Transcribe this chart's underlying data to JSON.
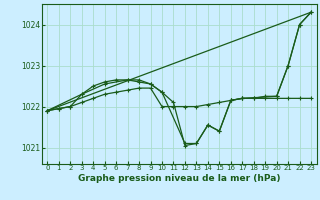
{
  "title": "Graphe pression niveau de la mer (hPa)",
  "bg_color": "#cceeff",
  "grid_color": "#aaddcc",
  "line_color": "#1a5c1a",
  "xlim": [
    -0.5,
    23.5
  ],
  "ylim": [
    1020.6,
    1024.5
  ],
  "yticks": [
    1021,
    1022,
    1023,
    1024
  ],
  "xticks": [
    0,
    1,
    2,
    3,
    4,
    5,
    6,
    7,
    8,
    9,
    10,
    11,
    12,
    13,
    14,
    15,
    16,
    17,
    18,
    19,
    20,
    21,
    22,
    23
  ],
  "line1_x": [
    0,
    1,
    2,
    3,
    4,
    5,
    6,
    7,
    8,
    9,
    10,
    11,
    12,
    13,
    14,
    15,
    16,
    17,
    18,
    19,
    20,
    21,
    22,
    23
  ],
  "line1_y": [
    1021.9,
    1021.95,
    1022.0,
    1022.1,
    1022.2,
    1022.3,
    1022.35,
    1022.4,
    1022.45,
    1022.45,
    1022.0,
    1022.0,
    1022.0,
    1022.0,
    1022.05,
    1022.1,
    1022.15,
    1022.2,
    1022.2,
    1022.2,
    1022.2,
    1022.2,
    1022.2,
    1022.2
  ],
  "line2_x": [
    0,
    1,
    2,
    3,
    4,
    5,
    6,
    7,
    8,
    9,
    10,
    11,
    12,
    13,
    14,
    15,
    16,
    17,
    18,
    19,
    20,
    21,
    22,
    23
  ],
  "line2_y": [
    1021.9,
    1021.95,
    1022.0,
    1022.3,
    1022.5,
    1022.6,
    1022.65,
    1022.65,
    1022.6,
    1022.55,
    1022.35,
    1022.1,
    1021.05,
    1021.1,
    1021.55,
    1021.4,
    1022.15,
    1022.2,
    1022.2,
    1022.25,
    1022.25,
    1023.0,
    1024.0,
    1024.3
  ],
  "line3_x": [
    0,
    3,
    5,
    7,
    8,
    9,
    10,
    12,
    13,
    14,
    15,
    16,
    17,
    20,
    21,
    22,
    23
  ],
  "line3_y": [
    1021.9,
    1022.3,
    1022.55,
    1022.65,
    1022.65,
    1022.55,
    1022.35,
    1021.1,
    1021.1,
    1021.55,
    1021.4,
    1022.15,
    1022.2,
    1022.25,
    1023.0,
    1024.0,
    1024.3
  ],
  "trend_x": [
    0,
    23
  ],
  "trend_y": [
    1021.9,
    1024.3
  ]
}
